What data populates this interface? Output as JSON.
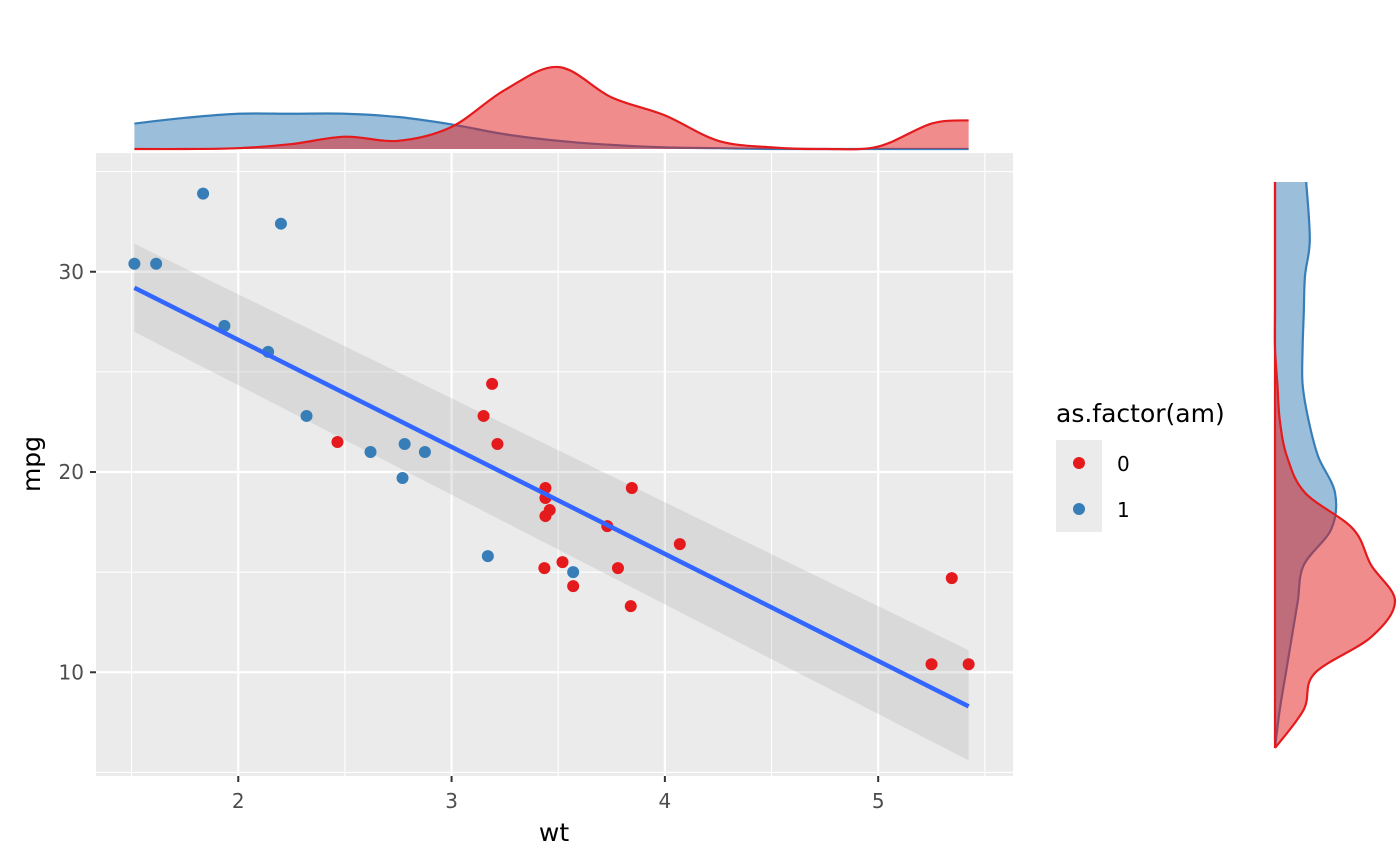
{
  "chart_data": {
    "type": "scatter",
    "title": "",
    "xlabel": "wt",
    "ylabel": "mpg",
    "xlim": [
      1.333,
      5.632
    ],
    "ylim": [
      4.82,
      35.93
    ],
    "x_ticks": [
      2,
      3,
      4,
      5
    ],
    "y_ticks": [
      10,
      20,
      30
    ],
    "grid": true,
    "legend": {
      "title": "as.factor(am)",
      "position": "right",
      "entries": [
        {
          "label": "0",
          "color": "#E41A1C"
        },
        {
          "label": "1",
          "color": "#377EB8"
        }
      ]
    },
    "series": [
      {
        "name": "0",
        "color": "#E41A1C",
        "points": [
          [
            3.215,
            21.4
          ],
          [
            3.44,
            18.7
          ],
          [
            3.46,
            18.1
          ],
          [
            3.57,
            14.3
          ],
          [
            3.19,
            24.4
          ],
          [
            3.15,
            22.8
          ],
          [
            3.44,
            19.2
          ],
          [
            3.44,
            17.8
          ],
          [
            4.07,
            16.4
          ],
          [
            3.73,
            17.3
          ],
          [
            3.78,
            15.2
          ],
          [
            5.25,
            10.4
          ],
          [
            5.424,
            10.4
          ],
          [
            5.345,
            14.7
          ],
          [
            2.465,
            21.5
          ],
          [
            3.52,
            15.5
          ],
          [
            3.435,
            15.2
          ],
          [
            3.84,
            13.3
          ],
          [
            3.845,
            19.2
          ]
        ]
      },
      {
        "name": "1",
        "color": "#377EB8",
        "points": [
          [
            2.62,
            21.0
          ],
          [
            2.875,
            21.0
          ],
          [
            2.32,
            22.8
          ],
          [
            2.2,
            32.4
          ],
          [
            1.615,
            30.4
          ],
          [
            1.835,
            33.9
          ],
          [
            1.935,
            27.3
          ],
          [
            2.14,
            26.0
          ],
          [
            1.513,
            30.4
          ],
          [
            3.17,
            15.8
          ],
          [
            2.77,
            19.7
          ],
          [
            3.57,
            15.0
          ],
          [
            2.78,
            21.4
          ]
        ]
      }
    ],
    "smooth": {
      "method": "lm",
      "color": "#3366FF",
      "slope": -5.344,
      "intercept": 37.285,
      "x_range": [
        1.513,
        5.424
      ],
      "ci_at_ends": {
        "lower_x_low": 27.0,
        "upper_x_low": 31.4,
        "lower_x_high": 5.6,
        "upper_x_high": 11.1
      }
    },
    "marginal_x_density": {
      "x": [
        1.513,
        1.75,
        2.0,
        2.25,
        2.5,
        2.75,
        3.0,
        3.25,
        3.5,
        3.75,
        4.0,
        4.25,
        4.5,
        4.75,
        5.0,
        5.25,
        5.424
      ],
      "series": [
        {
          "name": "0",
          "color": "#E41A1C",
          "values": [
            0.0,
            0.0,
            0.01,
            0.06,
            0.15,
            0.1,
            0.27,
            0.72,
            1.0,
            0.63,
            0.41,
            0.1,
            0.02,
            0.0,
            0.03,
            0.31,
            0.35
          ]
        },
        {
          "name": "1",
          "color": "#377EB8",
          "values": [
            0.31,
            0.38,
            0.43,
            0.43,
            0.43,
            0.39,
            0.3,
            0.18,
            0.1,
            0.05,
            0.02,
            0.01,
            0.0,
            0.0,
            0.0,
            0.0,
            0.0
          ]
        }
      ]
    },
    "marginal_y_density": {
      "y": [
        10.4,
        12,
        13.5,
        15,
        16.5,
        18,
        19.5,
        21,
        22.5,
        24,
        25.5,
        27,
        28.5,
        30,
        31.5,
        33.9
      ],
      "series": [
        {
          "name": "0",
          "color": "#E41A1C",
          "values": [
            0.0,
            0.24,
            0.33,
            0.8,
            1.0,
            0.8,
            0.65,
            0.25,
            0.1,
            0.04,
            0.02,
            0.0,
            0.0,
            0.0,
            0.0,
            0.0
          ]
        },
        {
          "name": "1",
          "color": "#377EB8",
          "values": [
            0.0,
            0.04,
            0.09,
            0.14,
            0.19,
            0.24,
            0.47,
            0.5,
            0.36,
            0.28,
            0.23,
            0.23,
            0.24,
            0.25,
            0.29,
            0.26
          ]
        }
      ]
    }
  }
}
